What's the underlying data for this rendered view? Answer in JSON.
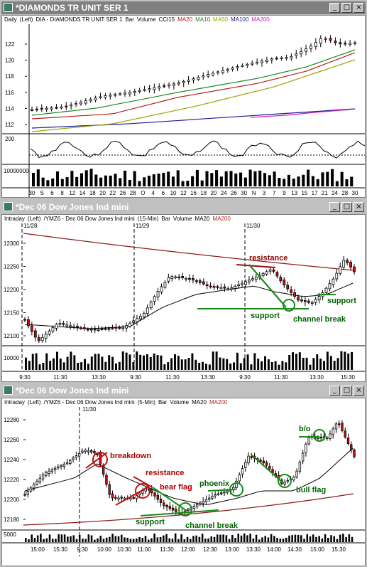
{
  "windows": [
    {
      "title": "*DIAMONDS TR UNIT SER 1",
      "header": [
        "Daily",
        "(Left)",
        "DIA - DIAMONDS TR UNIT SER 1",
        "Bar",
        "Volume",
        "CCI15"
      ],
      "ma_labels": [
        {
          "text": "MA20",
          "color": "#b22222"
        },
        {
          "text": "MA10",
          "color": "#1a8a1a"
        },
        {
          "text": "MA50",
          "color": "#a0a000"
        },
        {
          "text": "MA100",
          "color": "#1a1a9a"
        },
        {
          "text": "MA200",
          "color": "#d020c0"
        }
      ],
      "chart_data": {
        "type": "bar",
        "price_ticks": [
          "122",
          "120",
          "118",
          "116",
          "114",
          "112"
        ],
        "cci_tick": "200",
        "volume_tick": "10000000",
        "x_ticks": [
          "30",
          "S",
          "6",
          "8",
          "12",
          "14",
          "18",
          "20",
          "22",
          "26",
          "28",
          "O",
          "4",
          "6",
          "10",
          "12",
          "16",
          "18",
          "20",
          "24",
          "26",
          "30",
          "N",
          "3",
          "7",
          "9",
          "13",
          "15",
          "17",
          "21",
          "24",
          "28",
          "30"
        ]
      }
    },
    {
      "title": "*Dec 06  Dow Jones Ind mini",
      "header": [
        "Intraday",
        "(Left)",
        "/YMZ6 - Dec 06  Dow Jones Ind mini",
        "(15-Min)",
        "Bar",
        "Volume"
      ],
      "ma_labels": [
        {
          "text": "MA20",
          "color": "#000000"
        },
        {
          "text": "MA200",
          "color": "#b22222"
        }
      ],
      "chart_data": {
        "type": "bar",
        "price_ticks": [
          "12300",
          "12250",
          "12200",
          "12150",
          "12100"
        ],
        "volume_tick": "10000",
        "date_labels": [
          "11/28",
          "11/29",
          "11/30"
        ],
        "x_ticks": [
          "9:30",
          "11:30",
          "13:30",
          "9:30",
          "11:30",
          "13:30",
          "9:30",
          "11:30",
          "13:30",
          "15:30"
        ],
        "annotations": [
          {
            "text": "resistance",
            "color": "#8b0000"
          },
          {
            "text": "support",
            "color": "#006400"
          },
          {
            "text": "channel break",
            "color": "#006400"
          },
          {
            "text": "support",
            "color": "#006400"
          }
        ]
      }
    },
    {
      "title": "*Dec 06  Dow Jones Ind mini",
      "header": [
        "Intraday",
        "(Left)",
        "/YMZ6 - Dec 06  Dow Jones Ind mini",
        "(5-Min)",
        "Bar",
        "Volume"
      ],
      "ma_labels": [
        {
          "text": "MA20",
          "color": "#000000"
        },
        {
          "text": "MA200",
          "color": "#b22222"
        }
      ],
      "chart_data": {
        "type": "bar",
        "price_ticks": [
          "12280",
          "12260",
          "12240",
          "12220",
          "12200",
          "12180"
        ],
        "volume_tick": "5000",
        "date_labels": [
          "11/30"
        ],
        "x_ticks": [
          "15:00",
          "15:30",
          "9:30",
          "10:00",
          "10:30",
          "11:00",
          "11:30",
          "12:00",
          "12:30",
          "13:00",
          "13:30",
          "14:00",
          "14:30",
          "15:00",
          "15:30"
        ],
        "annotations": [
          {
            "text": "breakdown",
            "color": "#b00000"
          },
          {
            "text": "resistance",
            "color": "#b00000"
          },
          {
            "text": "bear flag",
            "color": "#b00000"
          },
          {
            "text": "support",
            "color": "#006400"
          },
          {
            "text": "channel break",
            "color": "#006400"
          },
          {
            "text": "phoenix",
            "color": "#006400"
          },
          {
            "text": "bull flag",
            "color": "#006400"
          },
          {
            "text": "b/o",
            "color": "#006400"
          }
        ]
      }
    }
  ]
}
